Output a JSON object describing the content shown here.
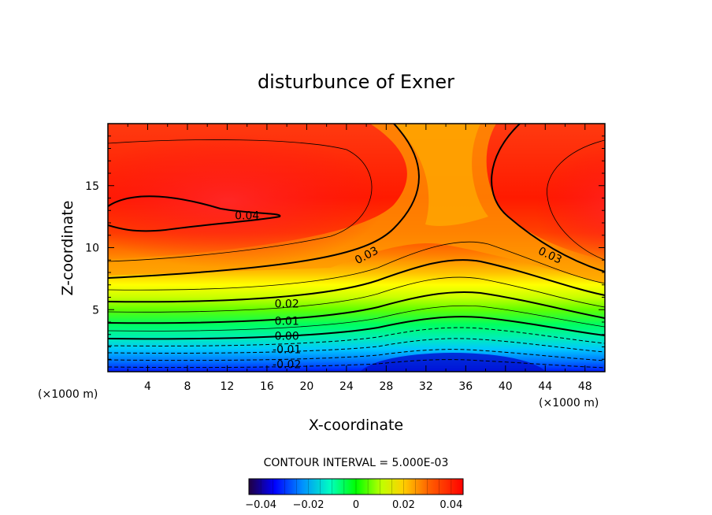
{
  "chart_data": {
    "type": "heatmap",
    "title": "disturbunce of Exner",
    "xlabel": "X-coordinate",
    "ylabel": "Z-coordinate",
    "x_unit": "(×1000 m)",
    "z_unit": "(×1000 m)",
    "xlim": [
      0,
      50
    ],
    "ylim": [
      0,
      20
    ],
    "x_ticks": [
      4,
      8,
      12,
      16,
      20,
      24,
      28,
      32,
      36,
      40,
      44,
      48
    ],
    "y_ticks": [
      5,
      10,
      15
    ],
    "contour_interval_text": "CONTOUR INTERVAL = 5.000E-03",
    "contour_interval": 0.005,
    "value_range": [
      -0.045,
      0.045
    ],
    "contour_labels": [
      {
        "text": "0.04",
        "x": 14,
        "z": 12.6
      },
      {
        "text": "0.03",
        "x": 26,
        "z": 9.4
      },
      {
        "text": "0.03",
        "x": 44.5,
        "z": 9.4
      },
      {
        "text": "0.02",
        "x": 18,
        "z": 5.5
      },
      {
        "text": "0.01",
        "x": 18,
        "z": 4.1
      },
      {
        "text": "0.00",
        "x": 18,
        "z": 2.9
      },
      {
        "text": "-0.01",
        "x": 18,
        "z": 1.8
      },
      {
        "text": "-0.02",
        "x": 18,
        "z": 0.6
      }
    ],
    "colorbar": {
      "tick_values": [
        -0.04,
        -0.02,
        0,
        0.02,
        0.04
      ],
      "tick_labels": [
        "−0.04",
        "−0.02",
        "0",
        "0.02",
        "0.04"
      ]
    }
  }
}
